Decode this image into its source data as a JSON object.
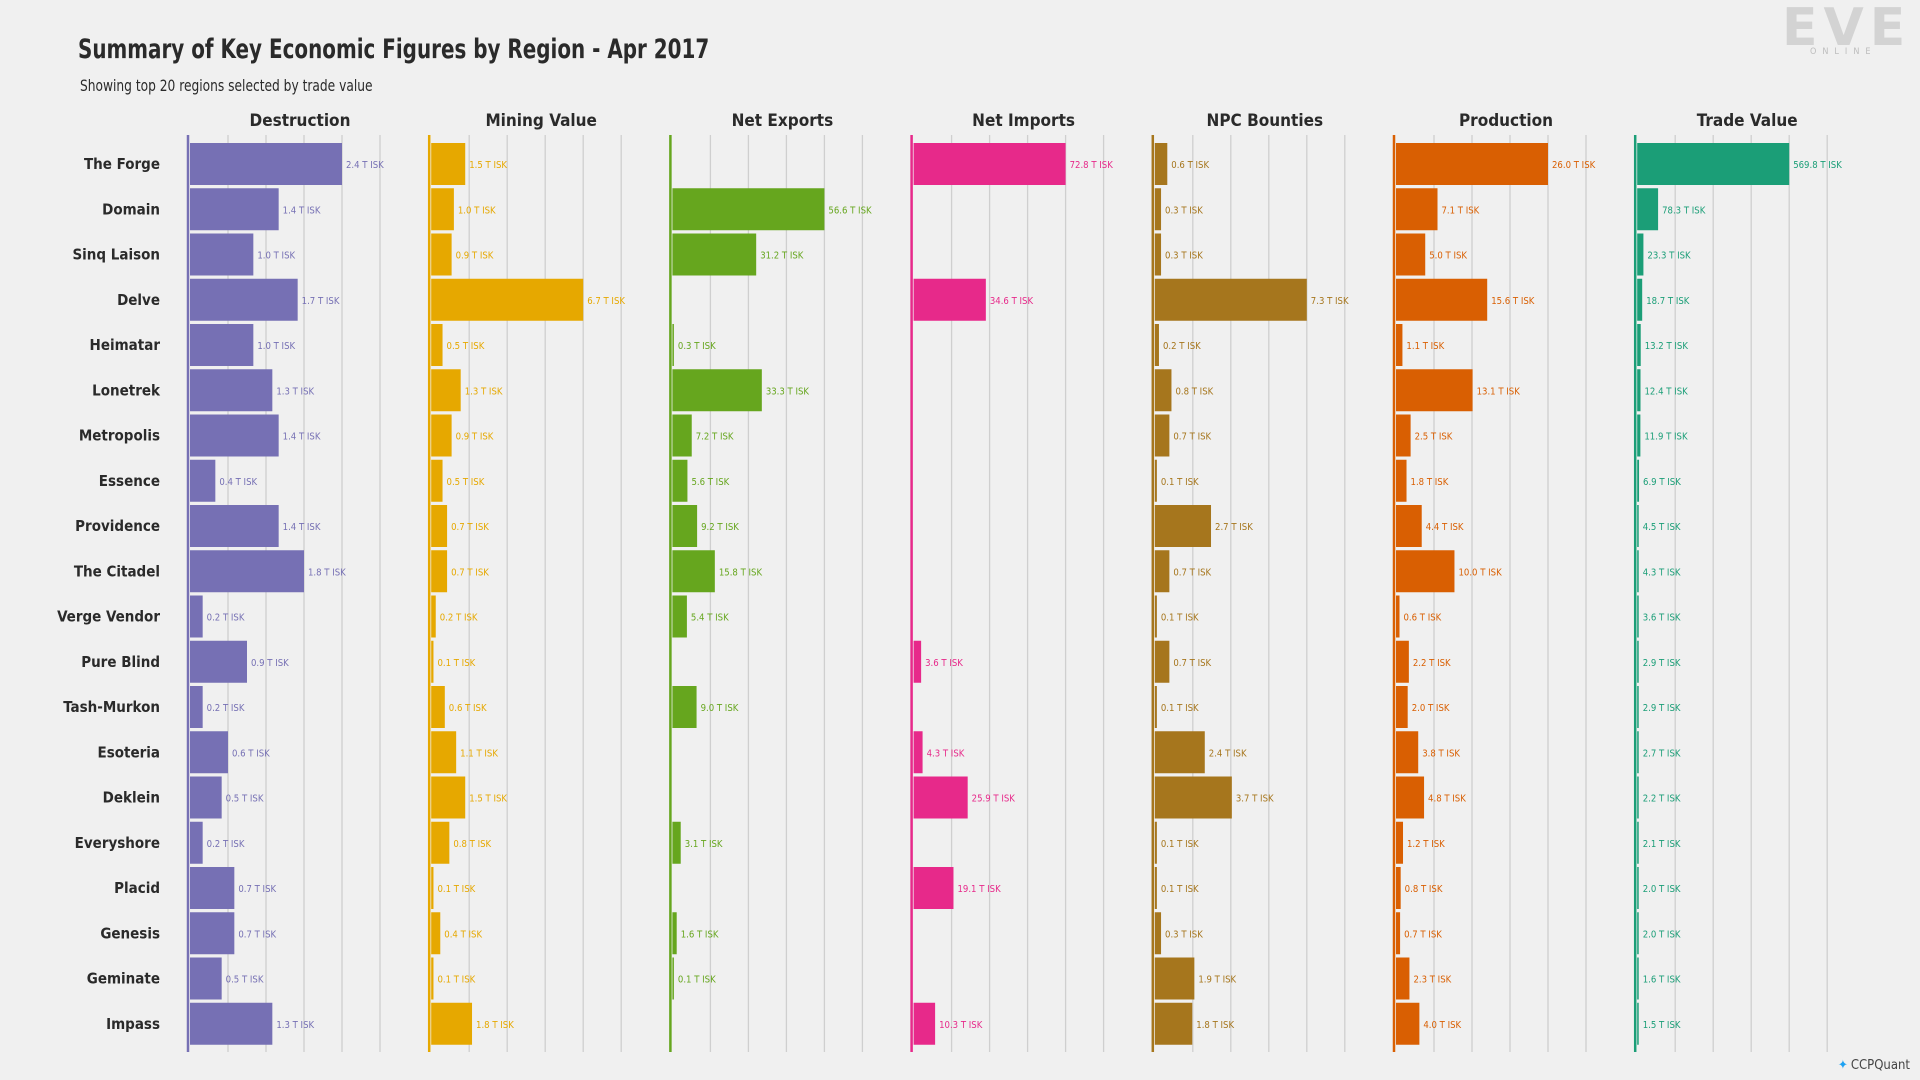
{
  "header": {
    "title": "Summary of Key Economic Figures by Region - Apr 2017",
    "subtitle": "Showing top 20 regions selected by trade value"
  },
  "logo": {
    "word": "EVE",
    "sub": "ONLINE"
  },
  "footer": {
    "handle": "CCPQuant"
  },
  "chart_data": {
    "type": "bar",
    "orientation": "horizontal",
    "title": "Summary of Key Economic Figures by Region - Apr 2017",
    "subtitle": "Showing top 20 regions selected by trade value",
    "unit": "T ISK",
    "grid": true,
    "categories": [
      "The Forge",
      "Domain",
      "Sinq Laison",
      "Delve",
      "Heimatar",
      "Lonetrek",
      "Metropolis",
      "Essence",
      "Providence",
      "The Citadel",
      "Verge Vendor",
      "Pure Blind",
      "Tash-Murkon",
      "Esoteria",
      "Deklein",
      "Everyshore",
      "Placid",
      "Genesis",
      "Geminate",
      "Impass"
    ],
    "series": [
      {
        "name": "Destruction",
        "color": "#7670b4",
        "values": [
          2.4,
          1.4,
          1.0,
          1.7,
          1.0,
          1.3,
          1.4,
          0.4,
          1.4,
          1.8,
          0.2,
          0.9,
          0.2,
          0.6,
          0.5,
          0.2,
          0.7,
          0.7,
          0.5,
          1.3
        ]
      },
      {
        "name": "Mining Value",
        "color": "#e6a800",
        "values": [
          1.5,
          1.0,
          0.9,
          6.7,
          0.5,
          1.3,
          0.9,
          0.5,
          0.7,
          0.7,
          0.2,
          0.1,
          0.6,
          1.1,
          1.5,
          0.8,
          0.1,
          0.4,
          0.1,
          1.8
        ]
      },
      {
        "name": "Net Exports",
        "color": "#66a61e",
        "values": [
          0,
          56.6,
          31.2,
          0,
          0.3,
          33.3,
          7.2,
          5.6,
          9.2,
          15.8,
          5.4,
          0,
          9.0,
          0,
          0,
          3.1,
          0,
          1.6,
          0.1,
          0
        ]
      },
      {
        "name": "Net Imports",
        "color": "#e7298a",
        "values": [
          72.8,
          0,
          0,
          34.6,
          0,
          0,
          0,
          0,
          0,
          0,
          0,
          3.6,
          0,
          4.3,
          25.9,
          0,
          19.1,
          0,
          0,
          10.3
        ]
      },
      {
        "name": "NPC Bounties",
        "color": "#a6761d",
        "values": [
          0.6,
          0.3,
          0.3,
          7.3,
          0.2,
          0.8,
          0.7,
          0.1,
          2.7,
          0.7,
          0.1,
          0.7,
          0.1,
          2.4,
          3.7,
          0.1,
          0.1,
          0.3,
          1.9,
          1.8
        ]
      },
      {
        "name": "Production",
        "color": "#d95f02",
        "values": [
          26.0,
          7.1,
          5.0,
          15.6,
          1.1,
          13.1,
          2.5,
          1.8,
          4.4,
          10.0,
          0.6,
          2.2,
          2.0,
          3.8,
          4.8,
          1.2,
          0.8,
          0.7,
          2.3,
          4.0
        ]
      },
      {
        "name": "Trade Value",
        "color": "#1b9e77",
        "values": [
          569.8,
          78.3,
          23.3,
          18.7,
          13.2,
          12.4,
          11.9,
          6.9,
          4.5,
          4.3,
          3.6,
          2.9,
          2.9,
          2.7,
          2.2,
          2.1,
          2.0,
          2.0,
          1.6,
          1.5
        ]
      }
    ]
  }
}
